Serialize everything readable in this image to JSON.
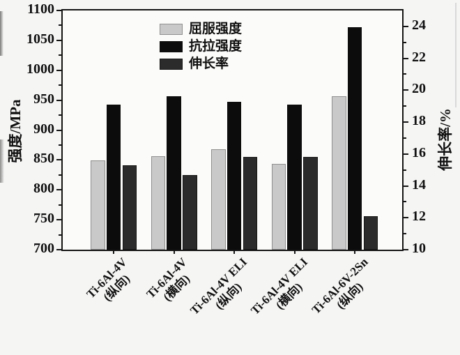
{
  "chart_data": {
    "type": "bar",
    "title": "",
    "categories": [
      {
        "name": "Ti-6Al-4V",
        "orientation": "(纵向)"
      },
      {
        "name": "Ti-6Al-4V",
        "orientation": "(横向)"
      },
      {
        "name": "Ti-6Al-4V ELI",
        "orientation": "(纵向)"
      },
      {
        "name": "Ti-6Al-4V ELI",
        "orientation": "(横向)"
      },
      {
        "name": "Ti-6Al-6V-2Sn",
        "orientation": "(纵向)"
      }
    ],
    "series": [
      {
        "key": "yield-strength",
        "name": "屈服强度",
        "axis": "left",
        "unit": "MPa",
        "color": "#c9c9c9",
        "border_color": "#8f8f8f",
        "values": [
          849,
          856,
          868,
          844,
          957
        ]
      },
      {
        "key": "tensile-strength",
        "name": "抗拉强度",
        "axis": "left",
        "unit": "MPa",
        "color": "#0c0c0c",
        "border_color": "#0c0c0c",
        "values": [
          943,
          956,
          947,
          943,
          1072
        ]
      },
      {
        "key": "elongation",
        "name": "伸长率",
        "axis": "right",
        "unit": "%",
        "color": "#2b2b2b",
        "border_color": "#151515",
        "values": [
          15.3,
          14.7,
          15.8,
          15.8,
          12.1
        ]
      }
    ],
    "left_axis": {
      "label": "强度/MPa",
      "min": 700,
      "max": 1100,
      "major_tick_step": 50,
      "minor_tick_step": 25,
      "labeled_ticks": [
        700,
        750,
        800,
        850,
        900,
        950,
        1000,
        1050,
        1100
      ]
    },
    "right_axis": {
      "label": "伸长率/%",
      "min": 10,
      "max": 25,
      "major_tick_step": 2,
      "minor_tick_step": 1,
      "labeled_ticks": [
        10,
        12,
        14,
        16,
        18,
        20,
        22,
        24
      ]
    },
    "legend_position": "upper-center",
    "grid": false
  }
}
